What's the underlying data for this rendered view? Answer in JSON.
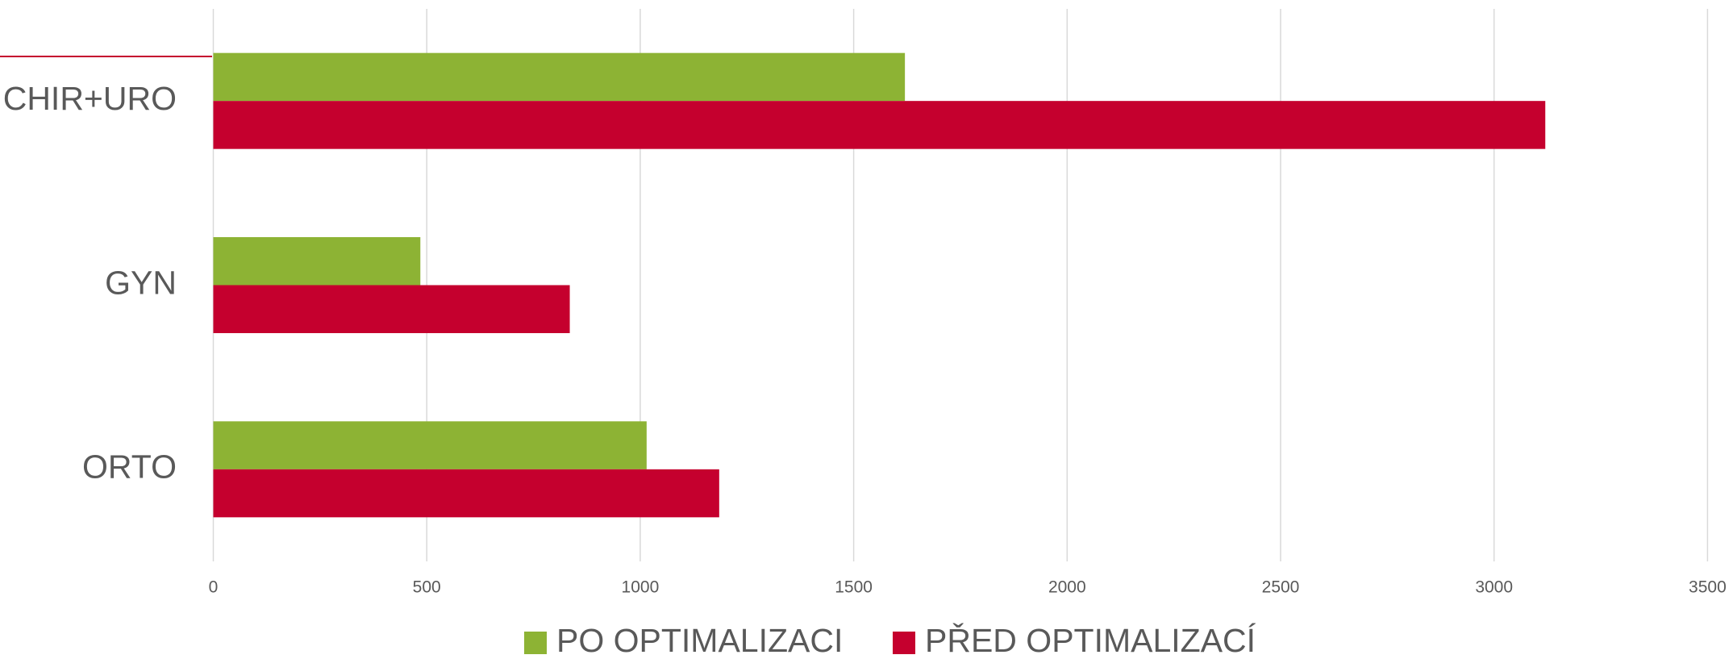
{
  "chart_data": {
    "type": "barh",
    "categories": [
      "CHIR+URO",
      "GYN",
      "ORTO"
    ],
    "series": [
      {
        "name": "PO OPTIMALIZACI",
        "color": "#8db334",
        "values": [
          1620,
          485,
          1015
        ]
      },
      {
        "name": "PŘED OPTIMALIZACÍ",
        "color": "#c5002e",
        "values": [
          3120,
          835,
          1185
        ]
      }
    ],
    "xlim": [
      0,
      3500
    ],
    "xticks": [
      0,
      500,
      1000,
      1500,
      2000,
      2500,
      3000,
      3500
    ],
    "grid": true,
    "legend": "bottom"
  }
}
